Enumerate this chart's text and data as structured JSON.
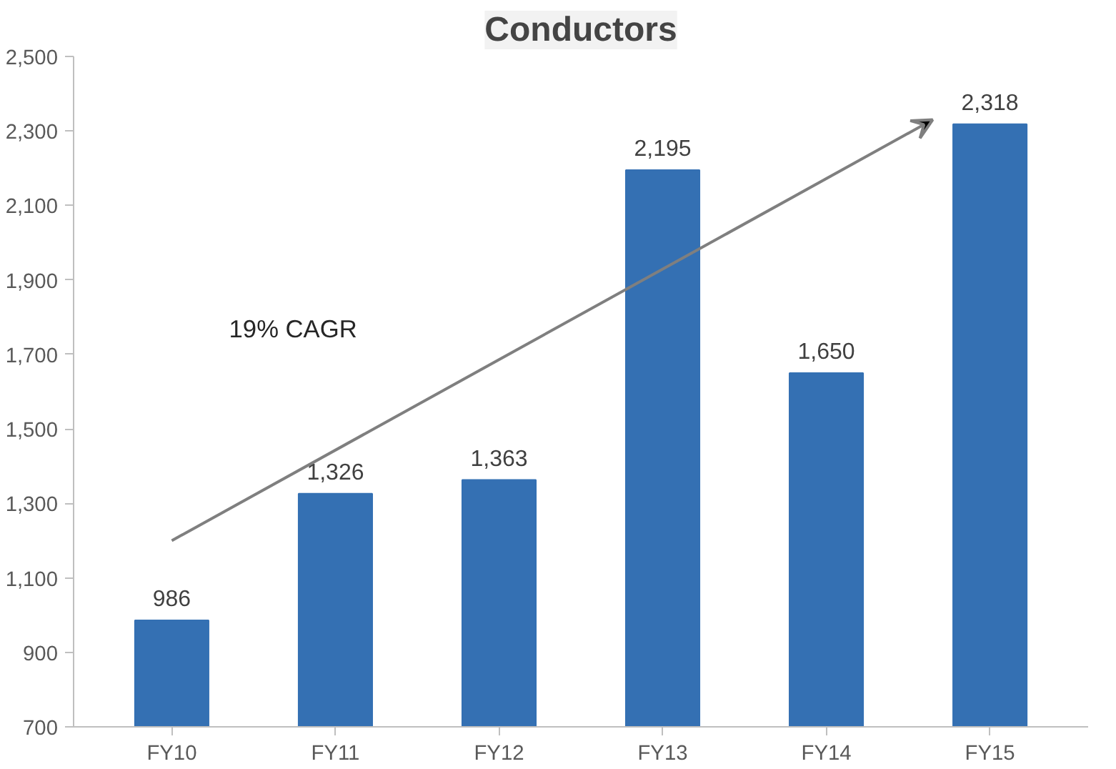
{
  "chart_data": {
    "type": "bar",
    "title": "Conductors",
    "categories": [
      "FY10",
      "FY11",
      "FY12",
      "FY13",
      "FY14",
      "FY15"
    ],
    "values": [
      986,
      1326,
      1363,
      2195,
      1650,
      2318
    ],
    "color": "#3470b3",
    "ylim": [
      700,
      2500
    ],
    "yticks": [
      {
        "value": 700,
        "label": "700"
      },
      {
        "value": 900,
        "label": "900"
      },
      {
        "value": 1100,
        "label": "1,100"
      },
      {
        "value": 1300,
        "label": "1,300"
      },
      {
        "value": 1500,
        "label": "1,500"
      },
      {
        "value": 1700,
        "label": "1,700"
      },
      {
        "value": 1900,
        "label": "1,900"
      },
      {
        "value": 2100,
        "label": "2,100"
      },
      {
        "value": 2300,
        "label": "2,300"
      },
      {
        "value": 2500,
        "label": "2,500"
      }
    ],
    "value_labels": [
      "986",
      "1,326",
      "1,363",
      "2,195",
      "1,650",
      "2,318"
    ],
    "annotations": [
      "19% CAGR"
    ],
    "grid": false
  }
}
